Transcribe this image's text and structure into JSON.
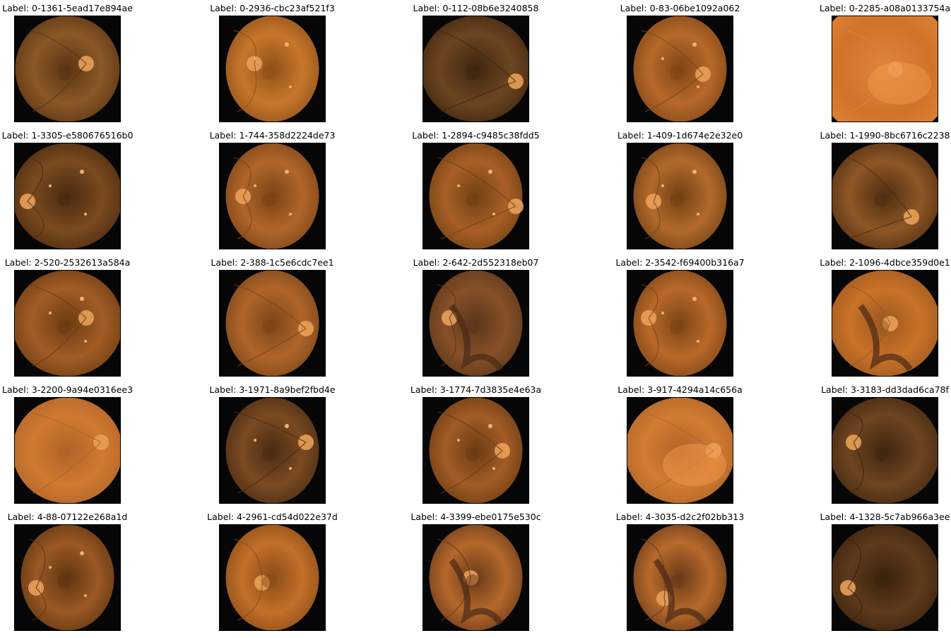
{
  "rows": [
    [
      {
        "label": "Label: 0-1361-5ead17e894ae",
        "tone": "#8a5828",
        "shade": "#5a3412",
        "disc": [
          0.68,
          0.45
        ],
        "clip": "round",
        "lesion": "none"
      },
      {
        "label": "Label: 0-2936-cbc23af521f3",
        "tone": "#c7772c",
        "shade": "#8f4f17",
        "disc": [
          0.33,
          0.45
        ],
        "clip": "narrow",
        "lesion": "spots"
      },
      {
        "label": "Label: 0-112-08b6e3240858",
        "tone": "#6d4521",
        "shade": "#3e250e",
        "disc": [
          0.88,
          0.62
        ],
        "clip": "wide",
        "lesion": "none"
      },
      {
        "label": "Label: 0-83-06be1092a062",
        "tone": "#b8692a",
        "shade": "#7d4514",
        "disc": [
          0.72,
          0.55
        ],
        "clip": "narrow",
        "lesion": "spots"
      },
      {
        "label": "Label: 0-2285-a08a0133754a",
        "tone": "#cf7328",
        "shade": "#e1853a",
        "disc": [
          0.6,
          0.5
        ],
        "clip": "full",
        "lesion": "glare"
      }
    ],
    [
      {
        "label": "Label: 1-3305-e580676516b0",
        "tone": "#7a4a1f",
        "shade": "#4a2a0f",
        "disc": [
          0.12,
          0.55
        ],
        "clip": "wide",
        "lesion": "spots"
      },
      {
        "label": "Label: 1-744-358d2224de73",
        "tone": "#b1662a",
        "shade": "#7a4215",
        "disc": [
          0.22,
          0.5
        ],
        "clip": "narrow",
        "lesion": "spots"
      },
      {
        "label": "Label: 1-2894-c9485c38fdd5",
        "tone": "#a85f26",
        "shade": "#704013",
        "disc": [
          0.88,
          0.6
        ],
        "clip": "narrow",
        "lesion": "spots"
      },
      {
        "label": "Label: 1-409-1d674e2e32e0",
        "tone": "#b36a2b",
        "shade": "#704013",
        "disc": [
          0.25,
          0.55
        ],
        "clip": "narrow",
        "lesion": "spots"
      },
      {
        "label": "Label: 1-1990-8bc6716c2238",
        "tone": "#8e5626",
        "shade": "#4f2e10",
        "disc": [
          0.75,
          0.7
        ],
        "clip": "wide",
        "lesion": "none"
      }
    ],
    [
      {
        "label": "Label: 2-520-2532613a584a",
        "tone": "#a35c25",
        "shade": "#6a3b12",
        "disc": [
          0.68,
          0.45
        ],
        "clip": "wide",
        "lesion": "spots"
      },
      {
        "label": "Label: 2-388-1c5e6cdc7ee1",
        "tone": "#b0652a",
        "shade": "#7a4417",
        "disc": [
          0.82,
          0.55
        ],
        "clip": "narrow",
        "lesion": "none"
      },
      {
        "label": "Label: 2-642-2d552318eb07",
        "tone": "#87502a",
        "shade": "#5b3618",
        "disc": [
          0.25,
          0.45
        ],
        "clip": "narrow",
        "lesion": "dark"
      },
      {
        "label": "Label: 2-3542-f69400b316a7",
        "tone": "#b9692a",
        "shade": "#7a4415",
        "disc": [
          0.2,
          0.45
        ],
        "clip": "narrow",
        "lesion": "spots"
      },
      {
        "label": "Label: 2-1096-4dbce359d0e1",
        "tone": "#c97228",
        "shade": "#9b5720",
        "disc": [
          0.55,
          0.5
        ],
        "clip": "wide",
        "lesion": "dark"
      }
    ],
    [
      {
        "label": "Label: 3-2200-9a94e0316ee3",
        "tone": "#cf7a30",
        "shade": "#b0632a",
        "disc": [
          0.82,
          0.42
        ],
        "clip": "wide",
        "lesion": "none"
      },
      {
        "label": "Label: 3-1971-8a9bef2fbd4e",
        "tone": "#7a4a22",
        "shade": "#4a2b12",
        "disc": [
          0.82,
          0.42
        ],
        "clip": "narrow",
        "lesion": "spots"
      },
      {
        "label": "Label: 3-1774-7d3835e4e63a",
        "tone": "#a35c25",
        "shade": "#6a3b12",
        "disc": [
          0.75,
          0.5
        ],
        "clip": "narrow",
        "lesion": "spots"
      },
      {
        "label": "Label: 3-917-4294a14c656a",
        "tone": "#d07c33",
        "shade": "#b36328",
        "disc": [
          0.82,
          0.5
        ],
        "clip": "wide",
        "lesion": "glare"
      },
      {
        "label": "Label: 3-3183-dd3dad6ca78f",
        "tone": "#6f4521",
        "shade": "#3f250e",
        "disc": [
          0.2,
          0.42
        ],
        "clip": "wide",
        "lesion": "none"
      }
    ],
    [
      {
        "label": "Label: 4-88-07122e268a1d",
        "tone": "#9b5824",
        "shade": "#5f3511",
        "disc": [
          0.2,
          0.6
        ],
        "clip": "narrow",
        "lesion": "spots"
      },
      {
        "label": "Label: 4-2961-cd54d022e37d",
        "tone": "#c2702b",
        "shade": "#8a4b17",
        "disc": [
          0.4,
          0.55
        ],
        "clip": "narrow",
        "lesion": "none"
      },
      {
        "label": "Label: 4-3399-ebe0175e530c",
        "tone": "#b5682b",
        "shade": "#6a3a19",
        "disc": [
          0.45,
          0.5
        ],
        "clip": "narrow",
        "lesion": "dark"
      },
      {
        "label": "Label: 4-3035-d2c2f02bb313",
        "tone": "#b86a2b",
        "shade": "#6a3a19",
        "disc": [
          0.35,
          0.7
        ],
        "clip": "narrow",
        "lesion": "dark"
      },
      {
        "label": "Label: 4-1328-5c7ab966a3ee",
        "tone": "#5e3a1c",
        "shade": "#3a220c",
        "disc": [
          0.15,
          0.6
        ],
        "clip": "wide",
        "lesion": "none"
      }
    ]
  ]
}
